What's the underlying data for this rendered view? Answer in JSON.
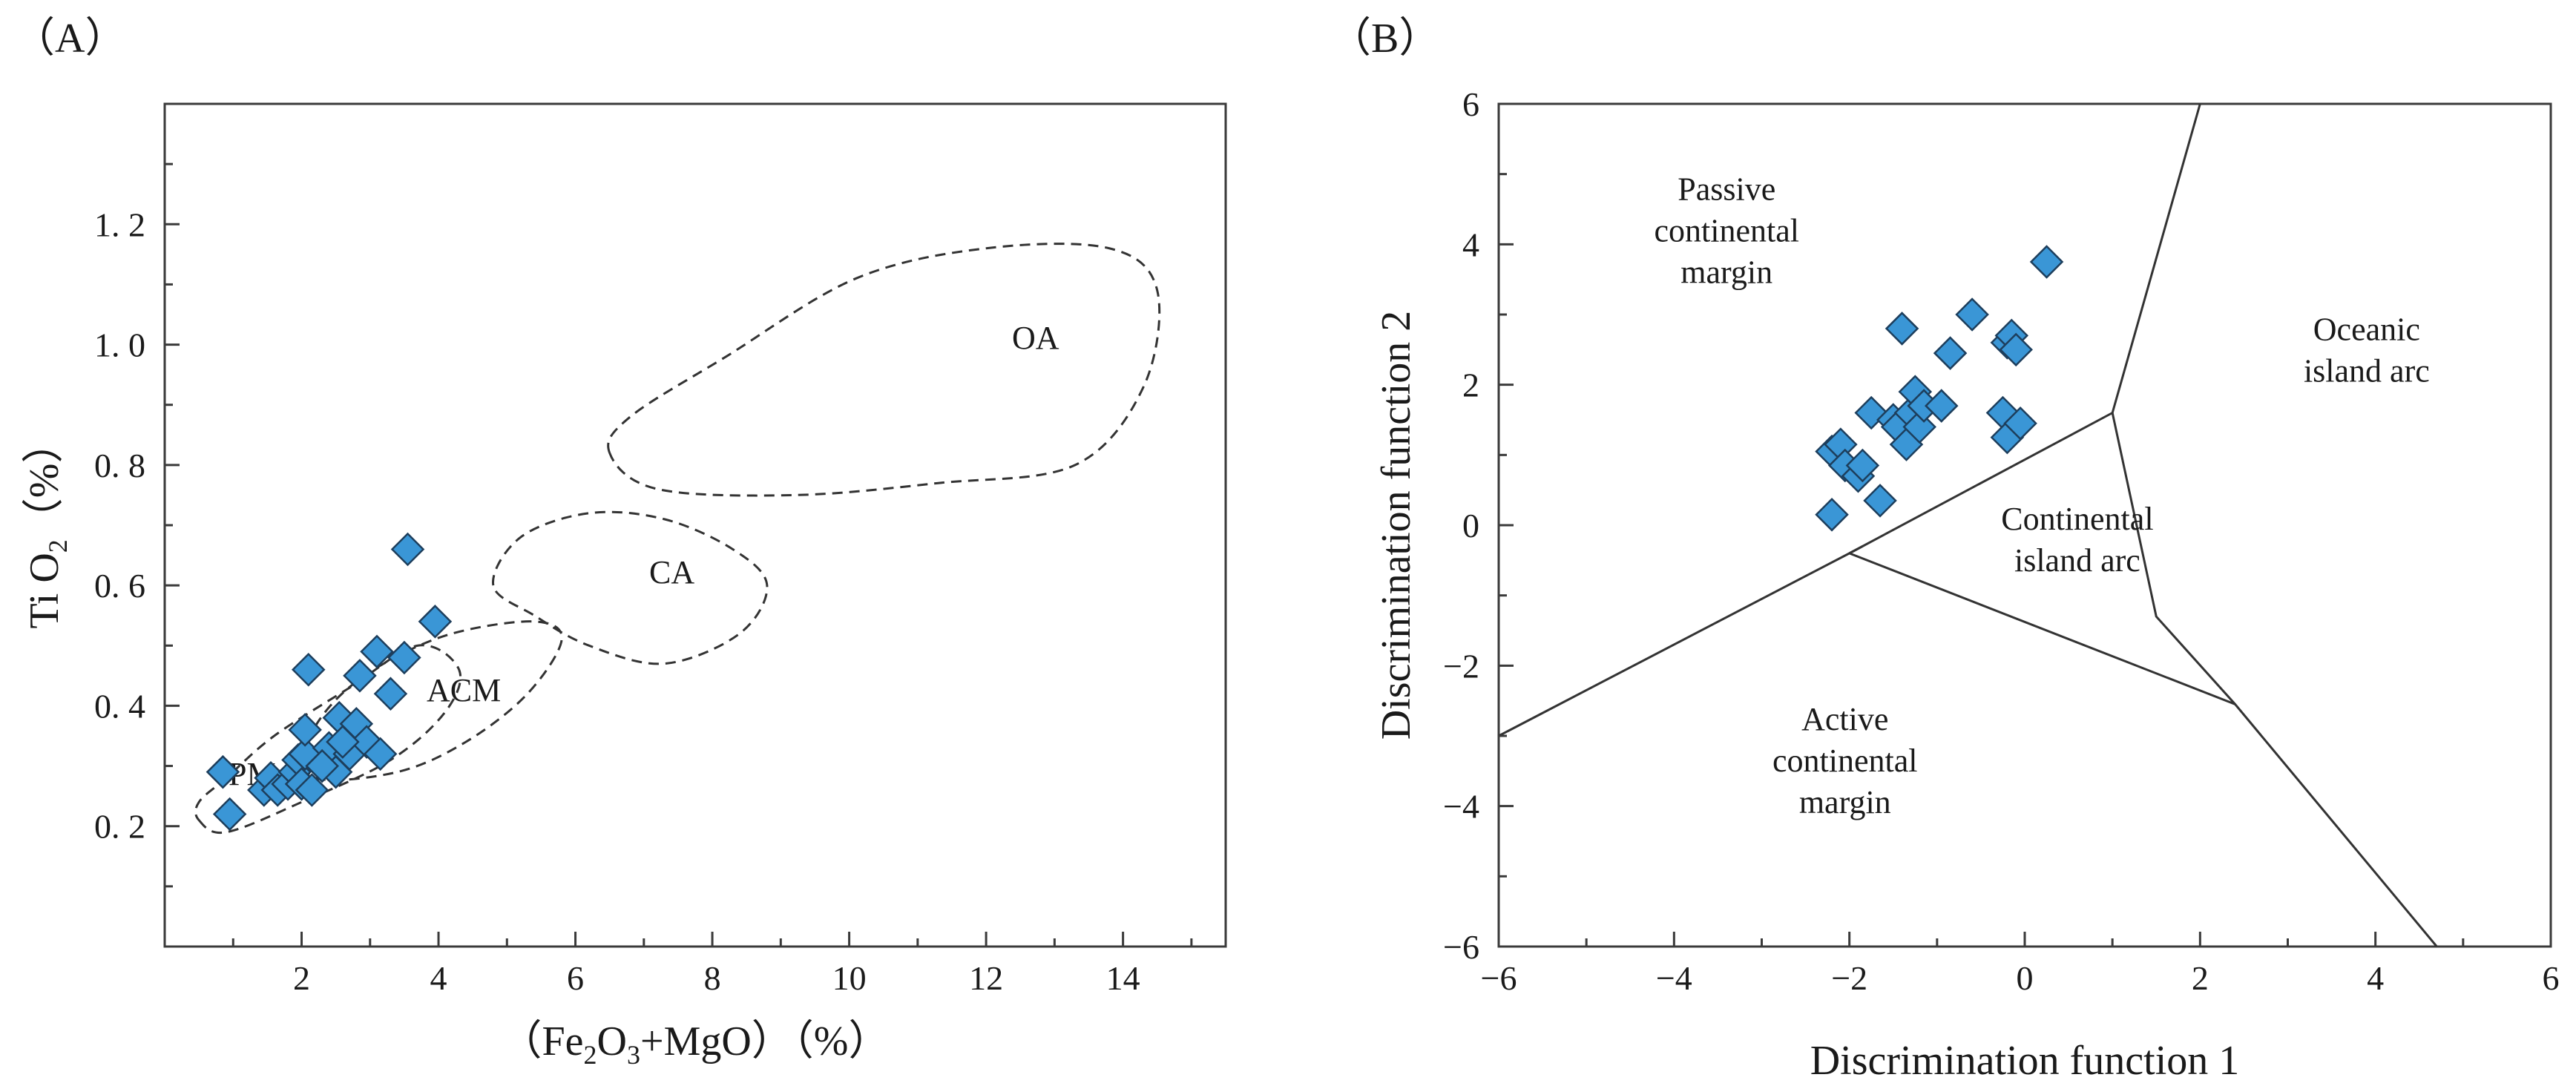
{
  "colors": {
    "marker_fill": "#3a96d6",
    "marker_stroke": "#1d3e5c",
    "line": "#333333",
    "text": "#1a1a1a"
  },
  "chart_data": [
    {
      "type": "scatter",
      "panel_label": "（A）",
      "title": "",
      "xlabel_parts": {
        "open": "（Fe",
        "sub1": "2",
        "mid": "O",
        "sub2": "3",
        "tail": "+MgO）（%）"
      },
      "ylabel_parts": {
        "main": "Ti O",
        "sub": "2",
        "tail": "（%）"
      },
      "xlim": [
        0,
        15.5
      ],
      "ylim": [
        0,
        1.4
      ],
      "xticks": [
        2,
        4,
        6,
        8,
        10,
        12,
        14
      ],
      "xtick_labels": [
        "2",
        "4",
        "6",
        "8",
        "10",
        "12",
        "14"
      ],
      "yticks": [
        0.2,
        0.4,
        0.6,
        0.8,
        1.0,
        1.2
      ],
      "ytick_labels": [
        "0. 2",
        "0. 4",
        "0. 6",
        "0. 8",
        "1. 0",
        "1. 2"
      ],
      "fields": [
        {
          "label": "PM",
          "points": [
            [
              0.5,
              0.21
            ],
            [
              0.9,
              0.19
            ],
            [
              2.0,
              0.24
            ],
            [
              3.3,
              0.31
            ],
            [
              4.1,
              0.39
            ],
            [
              4.3,
              0.46
            ],
            [
              3.7,
              0.5
            ],
            [
              2.7,
              0.43
            ],
            [
              1.6,
              0.35
            ],
            [
              0.9,
              0.28
            ],
            [
              0.5,
              0.24
            ]
          ]
        },
        {
          "label": "ACM",
          "points": [
            [
              2.2,
              0.28
            ],
            [
              3.4,
              0.29
            ],
            [
              4.4,
              0.34
            ],
            [
              5.3,
              0.42
            ],
            [
              5.8,
              0.51
            ],
            [
              5.4,
              0.54
            ],
            [
              4.2,
              0.52
            ],
            [
              3.2,
              0.47
            ],
            [
              2.5,
              0.41
            ],
            [
              2.1,
              0.34
            ]
          ]
        },
        {
          "label": "CA",
          "points": [
            [
              4.8,
              0.6
            ],
            [
              5.2,
              0.68
            ],
            [
              6.2,
              0.72
            ],
            [
              7.3,
              0.71
            ],
            [
              8.3,
              0.66
            ],
            [
              8.8,
              0.6
            ],
            [
              8.4,
              0.52
            ],
            [
              7.3,
              0.47
            ],
            [
              6.2,
              0.5
            ],
            [
              5.4,
              0.55
            ]
          ]
        },
        {
          "label": "OA",
          "points": [
            [
              6.5,
              0.82
            ],
            [
              6.8,
              0.88
            ],
            [
              8.2,
              0.98
            ],
            [
              10.1,
              1.11
            ],
            [
              12.0,
              1.16
            ],
            [
              13.8,
              1.16
            ],
            [
              14.5,
              1.09
            ],
            [
              14.3,
              0.93
            ],
            [
              13.3,
              0.8
            ],
            [
              11.3,
              0.77
            ],
            [
              9.2,
              0.75
            ],
            [
              7.2,
              0.76
            ]
          ]
        }
      ],
      "points": [
        [
          0.85,
          0.29
        ],
        [
          0.95,
          0.22
        ],
        [
          1.45,
          0.26
        ],
        [
          1.55,
          0.28
        ],
        [
          1.65,
          0.26
        ],
        [
          1.8,
          0.27
        ],
        [
          1.9,
          0.29
        ],
        [
          1.95,
          0.31
        ],
        [
          2.0,
          0.27
        ],
        [
          2.05,
          0.32
        ],
        [
          2.05,
          0.36
        ],
        [
          2.1,
          0.46
        ],
        [
          2.15,
          0.26
        ],
        [
          2.3,
          0.3
        ],
        [
          2.4,
          0.33
        ],
        [
          2.5,
          0.29
        ],
        [
          2.55,
          0.38
        ],
        [
          2.7,
          0.32
        ],
        [
          2.8,
          0.37
        ],
        [
          2.85,
          0.45
        ],
        [
          2.95,
          0.34
        ],
        [
          3.1,
          0.49
        ],
        [
          3.15,
          0.32
        ],
        [
          3.3,
          0.42
        ],
        [
          3.5,
          0.48
        ],
        [
          3.55,
          0.66
        ],
        [
          3.95,
          0.54
        ],
        [
          2.3,
          0.3
        ],
        [
          2.6,
          0.34
        ]
      ]
    },
    {
      "type": "scatter",
      "panel_label": "（B）",
      "title": "",
      "xlabel": "Discrimination function 1",
      "ylabel": "Discrimination function 2",
      "xlim": [
        -6,
        6
      ],
      "ylim": [
        -6,
        6
      ],
      "xticks": [
        -6,
        -4,
        -2,
        0,
        2,
        4,
        6
      ],
      "xtick_labels": [
        "−6",
        "−4",
        "−2",
        "0",
        "2",
        "4",
        "6"
      ],
      "yticks": [
        -6,
        -4,
        -2,
        0,
        2,
        4,
        6
      ],
      "ytick_labels": [
        "−6",
        "−4",
        "−2",
        "0",
        "2",
        "4",
        "6"
      ],
      "regions": [
        {
          "label_lines": [
            "Passive",
            "continental",
            "margin"
          ],
          "at": [
            -3.4,
            4.2
          ]
        },
        {
          "label_lines": [
            "Oceanic",
            "island arc"
          ],
          "at": [
            3.9,
            2.5
          ]
        },
        {
          "label_lines": [
            "Continental",
            "island arc"
          ],
          "at": [
            0.6,
            -0.2
          ]
        },
        {
          "label_lines": [
            "Active",
            "continental",
            "margin"
          ],
          "at": [
            -2.05,
            -3.35
          ]
        }
      ],
      "boundaries": [
        [
          [
            -6.0,
            -3.0
          ],
          [
            -2.0,
            -0.4
          ],
          [
            1.0,
            1.6
          ],
          [
            2.0,
            6.0
          ]
        ],
        [
          [
            1.0,
            1.6
          ],
          [
            1.5,
            -1.3
          ],
          [
            2.4,
            -2.55
          ],
          [
            4.7,
            -6.0
          ]
        ],
        [
          [
            -2.0,
            -0.4
          ],
          [
            2.4,
            -2.55
          ]
        ],
        [
          [
            -2.0,
            -0.4
          ],
          [
            -1.85,
            -0.3
          ]
        ]
      ],
      "points": [
        [
          -2.2,
          0.15
        ],
        [
          -2.2,
          1.05
        ],
        [
          -2.1,
          1.15
        ],
        [
          -2.05,
          0.85
        ],
        [
          -1.9,
          0.7
        ],
        [
          -1.85,
          0.85
        ],
        [
          -1.75,
          1.6
        ],
        [
          -1.65,
          0.35
        ],
        [
          -1.5,
          1.5
        ],
        [
          -1.45,
          1.4
        ],
        [
          -1.4,
          2.8
        ],
        [
          -1.35,
          1.15
        ],
        [
          -1.3,
          1.6
        ],
        [
          -1.25,
          1.9
        ],
        [
          -1.2,
          1.4
        ],
        [
          -1.15,
          1.7
        ],
        [
          -0.95,
          1.7
        ],
        [
          -0.85,
          2.45
        ],
        [
          -0.6,
          3.0
        ],
        [
          -0.25,
          1.6
        ],
        [
          -0.2,
          1.25
        ],
        [
          -0.2,
          2.6
        ],
        [
          -0.15,
          2.7
        ],
        [
          -0.1,
          2.5
        ],
        [
          -0.05,
          1.45
        ],
        [
          0.25,
          3.75
        ]
      ]
    }
  ]
}
